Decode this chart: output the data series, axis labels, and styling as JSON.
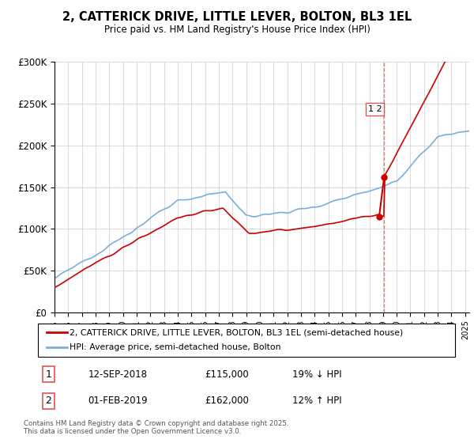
{
  "title": "2, CATTERICK DRIVE, LITTLE LEVER, BOLTON, BL3 1EL",
  "subtitle": "Price paid vs. HM Land Registry's House Price Index (HPI)",
  "ylabel_ticks": [
    "£0",
    "£50K",
    "£100K",
    "£150K",
    "£200K",
    "£250K",
    "£300K"
  ],
  "ylim": [
    0,
    300000
  ],
  "xlim_start": 1995.0,
  "xlim_end": 2025.3,
  "red_color": "#cc0000",
  "blue_color": "#7aaedb",
  "dashed_color": "#dd5555",
  "marker1_date": 2018.72,
  "marker1_price": 115000,
  "marker2_date": 2019.08,
  "marker2_price": 162000,
  "box_label": "1 2",
  "legend_line1": "2, CATTERICK DRIVE, LITTLE LEVER, BOLTON, BL3 1EL (semi-detached house)",
  "legend_line2": "HPI: Average price, semi-detached house, Bolton",
  "footnote": "Contains HM Land Registry data © Crown copyright and database right 2025.\nThis data is licensed under the Open Government Licence v3.0.",
  "table_row1_num": "1",
  "table_row1_date": "12-SEP-2018",
  "table_row1_price": "£115,000",
  "table_row1_hpi": "19% ↓ HPI",
  "table_row2_num": "2",
  "table_row2_date": "01-FEB-2019",
  "table_row2_price": "£162,000",
  "table_row2_hpi": "12% ↑ HPI"
}
